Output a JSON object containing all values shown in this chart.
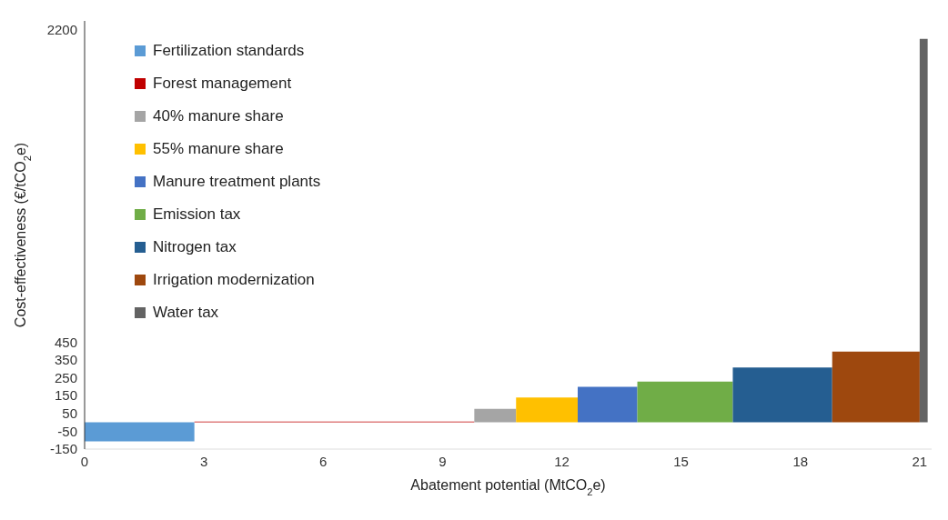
{
  "chart_data": {
    "type": "area",
    "xlabel": "Abatement potential (MtCO$_{2}$e)",
    "ylabel": "Cost-effectiveness (€/tCO$_{2}$e)",
    "xlim": [
      0,
      21.3
    ],
    "xticks": [
      0,
      3,
      6,
      9,
      12,
      15,
      18,
      21
    ],
    "ylim": [
      -150,
      2250
    ],
    "yticks": [
      -150,
      -50,
      50,
      150,
      250,
      350,
      450,
      2200
    ],
    "legend": "top left",
    "grid": false,
    "series": [
      {
        "name": "Fertilization standards",
        "color": "#5b9bd5",
        "x": [
          0,
          2.76
        ],
        "values": [
          -107,
          -107
        ]
      },
      {
        "name": "Forest management",
        "color": "#c00000",
        "x": [
          2.76,
          9.8
        ],
        "values": [
          4,
          4
        ]
      },
      {
        "name": "40% manure share",
        "color": "#a5a5a5",
        "x": [
          9.8,
          10.85
        ],
        "values": [
          75,
          75
        ]
      },
      {
        "name": "55% manure share",
        "color": "#ffc000",
        "x": [
          10.85,
          12.4
        ],
        "values": [
          139,
          139
        ]
      },
      {
        "name": "Manure treatment plants",
        "color": "#4472c4",
        "x": [
          12.4,
          13.9
        ],
        "values": [
          199,
          199
        ]
      },
      {
        "name": "Emission tax",
        "color": "#70ad47",
        "x": [
          13.9,
          16.3
        ],
        "values": [
          228,
          228
        ]
      },
      {
        "name": "Nitrogen tax",
        "color": "#255e91",
        "x": [
          16.3,
          18.8
        ],
        "values": [
          307,
          307
        ]
      },
      {
        "name": "Irrigation modernization",
        "color": "#9e480e",
        "x": [
          18.8,
          21.0
        ],
        "values": [
          397,
          397
        ]
      },
      {
        "name": "Water tax",
        "color": "#636363",
        "x": [
          21.0,
          21.2
        ],
        "values": [
          2150,
          2150
        ]
      }
    ]
  }
}
